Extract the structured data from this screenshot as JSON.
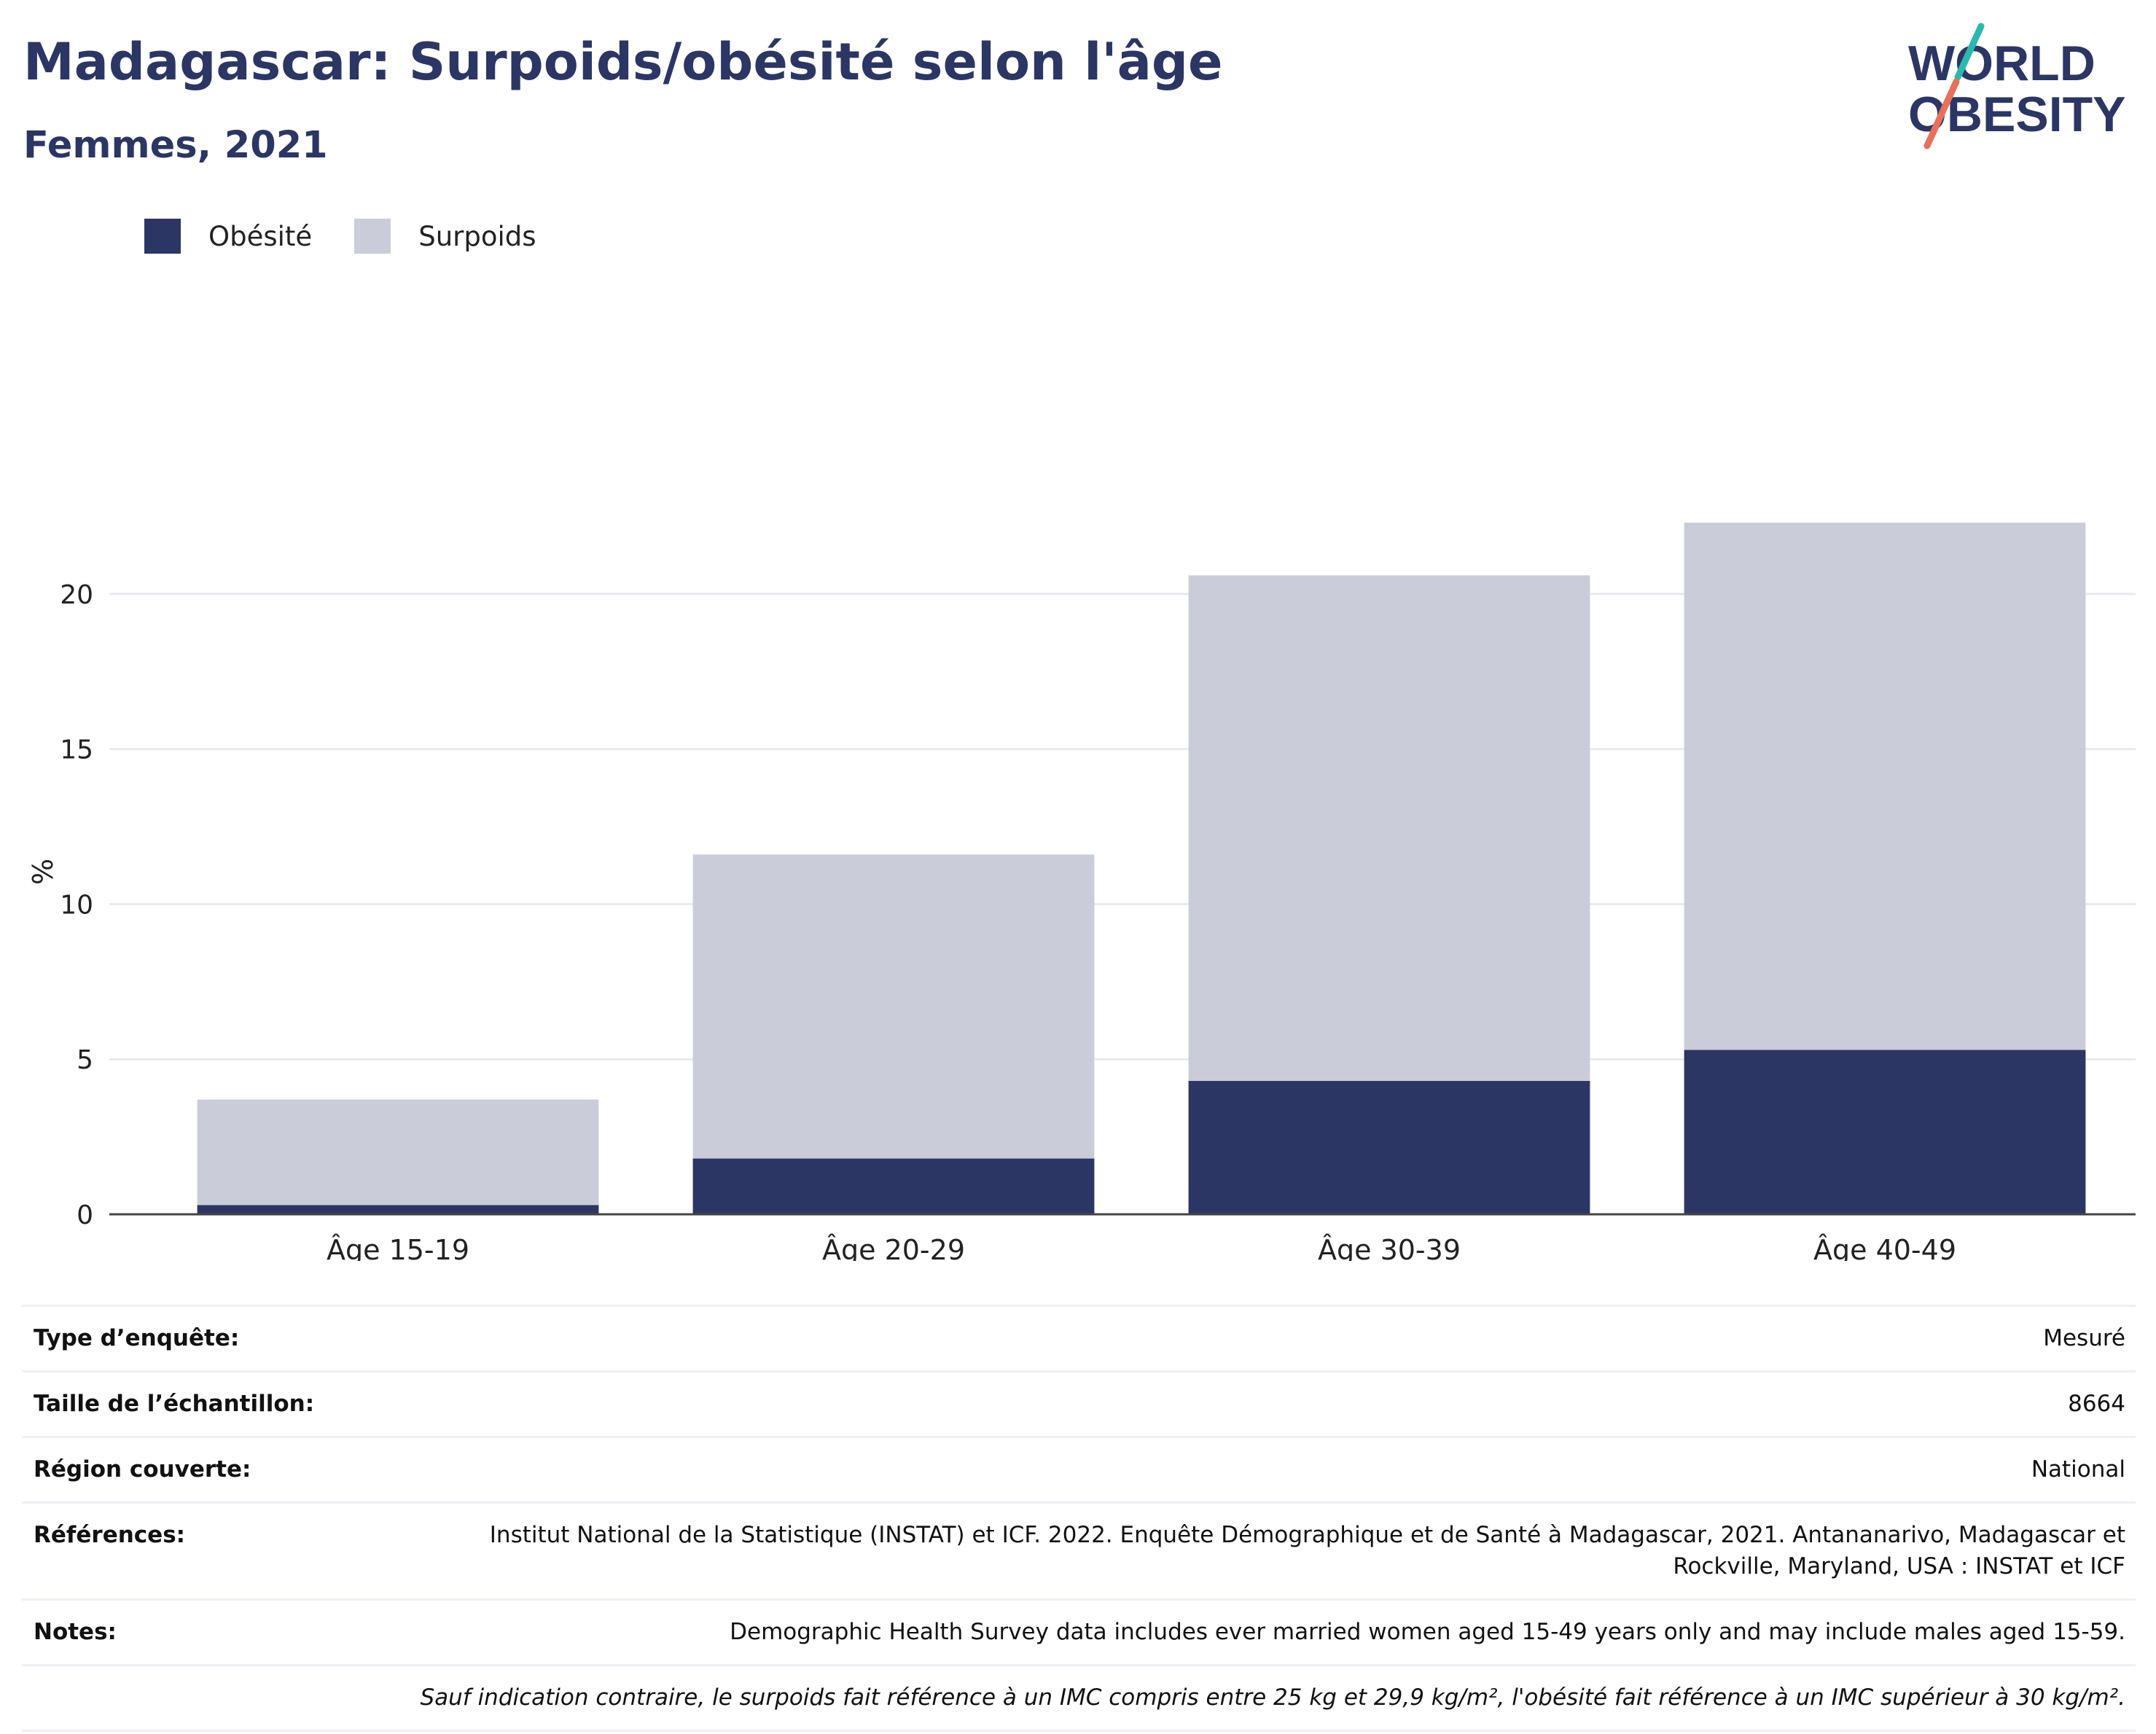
{
  "header": {
    "title": "Madagascar: Surpoids/obésité selon l'âge",
    "subtitle": "Femmes, 2021"
  },
  "logo": {
    "line1": "WORLD",
    "line2": "OBESITY",
    "colors": {
      "text": "#2b3664",
      "teal": "#2bb8b0",
      "coral": "#e8705a"
    }
  },
  "legend": [
    {
      "label": "Obésité",
      "color": "#2b3664"
    },
    {
      "label": "Surpoids",
      "color": "#cacdd9"
    }
  ],
  "chart_data": {
    "type": "bar",
    "stacked": true,
    "categories": [
      "Âge 15-19",
      "Âge 20-29",
      "Âge 30-39",
      "Âge 40-49"
    ],
    "series": [
      {
        "name": "Obésité",
        "values": [
          0.3,
          1.8,
          4.3,
          5.3
        ],
        "color": "#2b3664"
      },
      {
        "name": "Surpoids",
        "values": [
          3.4,
          9.8,
          16.3,
          17.0
        ],
        "color": "#cacdd9"
      }
    ],
    "ylabel": "%",
    "yticks": [
      0,
      5,
      10,
      15,
      20
    ],
    "ylim": [
      0,
      23.5
    ],
    "grid": true,
    "legend_position": "top-left"
  },
  "info": {
    "rows": [
      {
        "label": "Type d’enquête:",
        "value": "Mesuré"
      },
      {
        "label": "Taille de l’échantillon:",
        "value": "8664"
      },
      {
        "label": "Région couverte:",
        "value": "National"
      },
      {
        "label": "Références:",
        "value": "Institut National de la Statistique (INSTAT) et ICF. 2022. Enquête Démographique et de Santé à Madagascar, 2021. Antananarivo, Madagascar et Rockville, Maryland, USA : INSTAT et ICF"
      },
      {
        "label": "Notes:",
        "value": "Demographic Health Survey data includes ever married women aged 15-49 years only and may include males aged 15-59."
      }
    ],
    "footnote": "Sauf indication contraire, le surpoids fait référence à un IMC compris entre 25 kg et 29,9 kg/m², l'obésité fait référence à un IMC supérieur à 30 kg/m²."
  }
}
